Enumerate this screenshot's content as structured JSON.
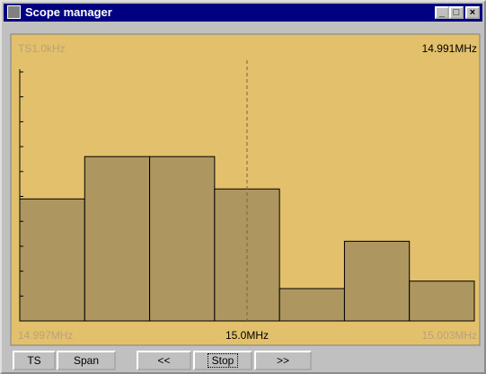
{
  "window": {
    "title": "Scope manager"
  },
  "display": {
    "top_left": "TS1.0kHz",
    "top_right": "14.991MHz",
    "bottom_left": "14.997MHz",
    "bottom_center": "15.0MHz",
    "bottom_right": "15.003MHz"
  },
  "chart_data": {
    "type": "bar",
    "values": [
      4.9,
      6.6,
      6.6,
      5.3,
      1.3,
      3.2,
      1.6
    ],
    "color": "#ae9661",
    "ylim": [
      0,
      10
    ],
    "yticks": [
      0,
      1,
      2,
      3,
      4,
      5,
      6,
      7,
      8,
      9,
      10
    ]
  },
  "buttons": [
    "TS",
    "Span",
    "<<",
    "Stop",
    ">>"
  ]
}
